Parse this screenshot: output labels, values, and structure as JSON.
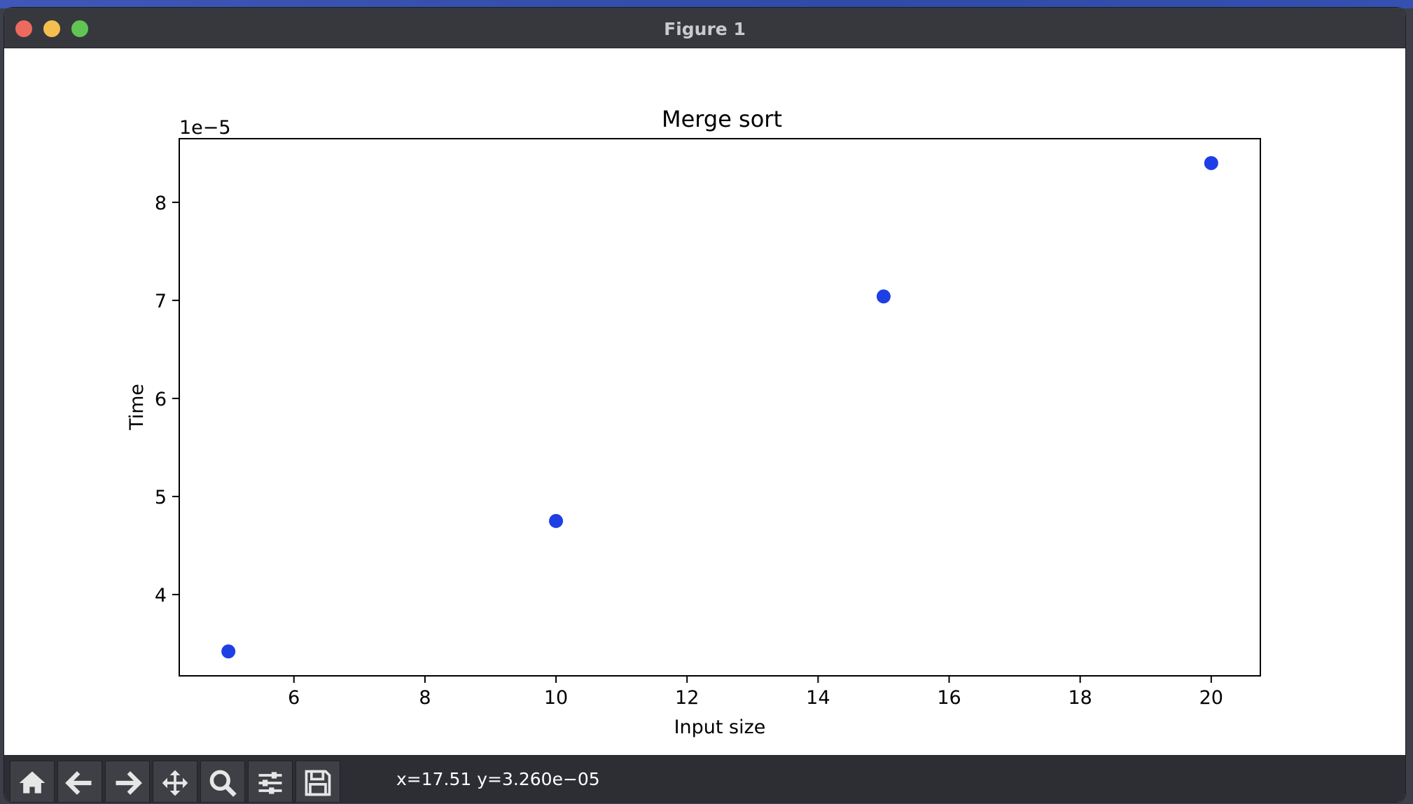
{
  "window": {
    "title": "Figure 1"
  },
  "toolbar": {
    "buttons": [
      {
        "name": "home",
        "icon": "home-icon"
      },
      {
        "name": "back",
        "icon": "arrow-left-icon"
      },
      {
        "name": "forward",
        "icon": "arrow-right-icon"
      },
      {
        "name": "pan",
        "icon": "move-icon"
      },
      {
        "name": "zoom",
        "icon": "search-icon"
      },
      {
        "name": "configure",
        "icon": "sliders-icon"
      },
      {
        "name": "save",
        "icon": "floppy-disk-icon"
      }
    ],
    "coords_text": "x=17.51 y=3.260e−05"
  },
  "chart_data": {
    "type": "scatter",
    "title": "Merge sort",
    "xlabel": "Input size",
    "ylabel": "Time",
    "offset_text": "1e−5",
    "x": [
      5,
      10,
      15,
      20
    ],
    "y": [
      3.42e-05,
      4.75e-05,
      7.04e-05,
      8.4e-05
    ],
    "xlim": [
      4.25,
      20.75
    ],
    "ylim": [
      3.171e-05,
      8.649e-05
    ],
    "xticks": [
      6,
      8,
      10,
      12,
      14,
      16,
      18,
      20
    ],
    "yticks": [
      4,
      5,
      6,
      7,
      8
    ],
    "point_color": "#1f3fe6",
    "grid": false
  }
}
